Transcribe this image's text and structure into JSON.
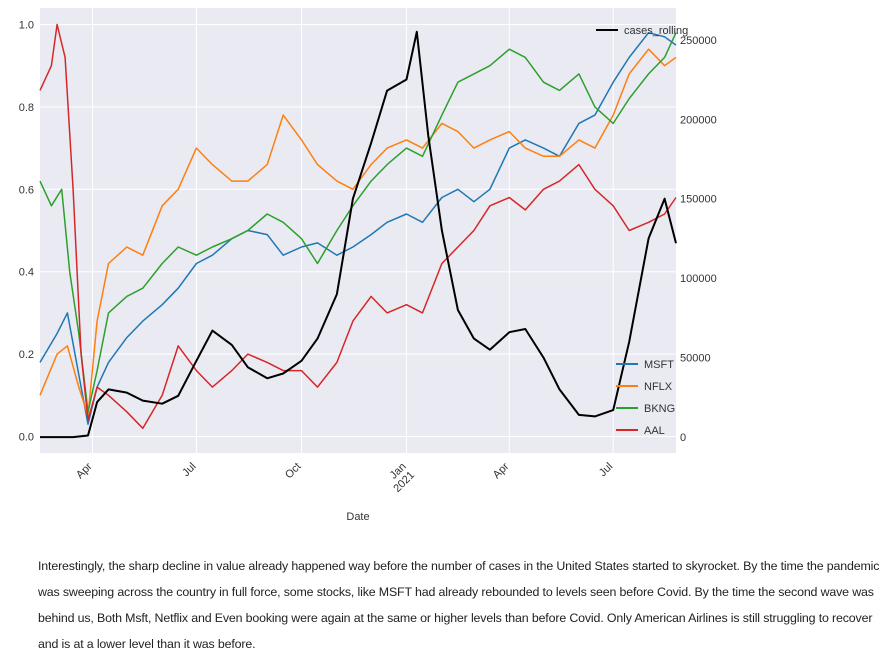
{
  "chart_data": {
    "type": "line",
    "xlabel": "Date",
    "x_range": [
      "2020-02-15",
      "2021-08-25"
    ],
    "xticks": [
      {
        "date": "2020-04-01",
        "label": "Apr"
      },
      {
        "date": "2020-07-01",
        "label": "Jul"
      },
      {
        "date": "2020-10-01",
        "label": "Oct"
      },
      {
        "date": "2021-01-01",
        "label": "Jan\n2021"
      },
      {
        "date": "2021-04-01",
        "label": "Apr"
      },
      {
        "date": "2021-07-01",
        "label": "Jul"
      }
    ],
    "ylim_left": [
      -0.04,
      1.04
    ],
    "yticks_left": [
      0.0,
      0.2,
      0.4,
      0.6,
      0.8,
      1.0
    ],
    "ylim_right": [
      -10000,
      270000
    ],
    "yticks_right": [
      0,
      50000,
      100000,
      150000,
      200000,
      250000
    ],
    "grid": true,
    "legends": [
      {
        "location": "top-right",
        "entries": [
          "cases_rolling"
        ]
      },
      {
        "location": "lower-right",
        "entries": [
          "MSFT",
          "NFLX",
          "BKNG",
          "AAL"
        ]
      }
    ],
    "series": [
      {
        "name": "MSFT",
        "axis": "left",
        "color": "#1f77b4",
        "points": [
          [
            "2020-02-15",
            0.18
          ],
          [
            "2020-03-01",
            0.25
          ],
          [
            "2020-03-10",
            0.3
          ],
          [
            "2020-03-20",
            0.15
          ],
          [
            "2020-03-28",
            0.03
          ],
          [
            "2020-04-05",
            0.12
          ],
          [
            "2020-04-15",
            0.18
          ],
          [
            "2020-05-01",
            0.24
          ],
          [
            "2020-05-15",
            0.28
          ],
          [
            "2020-06-01",
            0.32
          ],
          [
            "2020-06-15",
            0.36
          ],
          [
            "2020-07-01",
            0.42
          ],
          [
            "2020-07-15",
            0.44
          ],
          [
            "2020-08-01",
            0.48
          ],
          [
            "2020-08-15",
            0.5
          ],
          [
            "2020-09-01",
            0.49
          ],
          [
            "2020-09-15",
            0.44
          ],
          [
            "2020-10-01",
            0.46
          ],
          [
            "2020-10-15",
            0.47
          ],
          [
            "2020-11-01",
            0.44
          ],
          [
            "2020-11-15",
            0.46
          ],
          [
            "2020-12-01",
            0.49
          ],
          [
            "2020-12-15",
            0.52
          ],
          [
            "2021-01-01",
            0.54
          ],
          [
            "2021-01-15",
            0.52
          ],
          [
            "2021-02-01",
            0.58
          ],
          [
            "2021-02-15",
            0.6
          ],
          [
            "2021-03-01",
            0.57
          ],
          [
            "2021-03-15",
            0.6
          ],
          [
            "2021-04-01",
            0.7
          ],
          [
            "2021-04-15",
            0.72
          ],
          [
            "2021-05-01",
            0.7
          ],
          [
            "2021-05-15",
            0.68
          ],
          [
            "2021-06-01",
            0.76
          ],
          [
            "2021-06-15",
            0.78
          ],
          [
            "2021-07-01",
            0.86
          ],
          [
            "2021-07-15",
            0.92
          ],
          [
            "2021-08-01",
            0.98
          ],
          [
            "2021-08-15",
            0.97
          ],
          [
            "2021-08-25",
            0.95
          ]
        ]
      },
      {
        "name": "NFLX",
        "axis": "left",
        "color": "#ff7f0e",
        "points": [
          [
            "2020-02-15",
            0.1
          ],
          [
            "2020-03-01",
            0.2
          ],
          [
            "2020-03-10",
            0.22
          ],
          [
            "2020-03-20",
            0.12
          ],
          [
            "2020-03-28",
            0.05
          ],
          [
            "2020-04-05",
            0.28
          ],
          [
            "2020-04-15",
            0.42
          ],
          [
            "2020-05-01",
            0.46
          ],
          [
            "2020-05-15",
            0.44
          ],
          [
            "2020-06-01",
            0.56
          ],
          [
            "2020-06-15",
            0.6
          ],
          [
            "2020-07-01",
            0.7
          ],
          [
            "2020-07-15",
            0.66
          ],
          [
            "2020-08-01",
            0.62
          ],
          [
            "2020-08-15",
            0.62
          ],
          [
            "2020-09-01",
            0.66
          ],
          [
            "2020-09-15",
            0.78
          ],
          [
            "2020-10-01",
            0.72
          ],
          [
            "2020-10-15",
            0.66
          ],
          [
            "2020-11-01",
            0.62
          ],
          [
            "2020-11-15",
            0.6
          ],
          [
            "2020-12-01",
            0.66
          ],
          [
            "2020-12-15",
            0.7
          ],
          [
            "2021-01-01",
            0.72
          ],
          [
            "2021-01-15",
            0.7
          ],
          [
            "2021-02-01",
            0.76
          ],
          [
            "2021-02-15",
            0.74
          ],
          [
            "2021-03-01",
            0.7
          ],
          [
            "2021-03-15",
            0.72
          ],
          [
            "2021-04-01",
            0.74
          ],
          [
            "2021-04-15",
            0.7
          ],
          [
            "2021-05-01",
            0.68
          ],
          [
            "2021-05-15",
            0.68
          ],
          [
            "2021-06-01",
            0.72
          ],
          [
            "2021-06-15",
            0.7
          ],
          [
            "2021-07-01",
            0.78
          ],
          [
            "2021-07-15",
            0.88
          ],
          [
            "2021-08-01",
            0.94
          ],
          [
            "2021-08-15",
            0.9
          ],
          [
            "2021-08-25",
            0.92
          ]
        ]
      },
      {
        "name": "BKNG",
        "axis": "left",
        "color": "#2ca02c",
        "points": [
          [
            "2020-02-15",
            0.62
          ],
          [
            "2020-02-25",
            0.56
          ],
          [
            "2020-03-05",
            0.6
          ],
          [
            "2020-03-12",
            0.4
          ],
          [
            "2020-03-20",
            0.25
          ],
          [
            "2020-03-28",
            0.06
          ],
          [
            "2020-04-05",
            0.16
          ],
          [
            "2020-04-15",
            0.3
          ],
          [
            "2020-05-01",
            0.34
          ],
          [
            "2020-05-15",
            0.36
          ],
          [
            "2020-06-01",
            0.42
          ],
          [
            "2020-06-15",
            0.46
          ],
          [
            "2020-07-01",
            0.44
          ],
          [
            "2020-07-15",
            0.46
          ],
          [
            "2020-08-01",
            0.48
          ],
          [
            "2020-08-15",
            0.5
          ],
          [
            "2020-09-01",
            0.54
          ],
          [
            "2020-09-15",
            0.52
          ],
          [
            "2020-10-01",
            0.48
          ],
          [
            "2020-10-15",
            0.42
          ],
          [
            "2020-11-01",
            0.5
          ],
          [
            "2020-11-15",
            0.56
          ],
          [
            "2020-12-01",
            0.62
          ],
          [
            "2020-12-15",
            0.66
          ],
          [
            "2021-01-01",
            0.7
          ],
          [
            "2021-01-15",
            0.68
          ],
          [
            "2021-02-01",
            0.78
          ],
          [
            "2021-02-15",
            0.86
          ],
          [
            "2021-03-01",
            0.88
          ],
          [
            "2021-03-15",
            0.9
          ],
          [
            "2021-04-01",
            0.94
          ],
          [
            "2021-04-15",
            0.92
          ],
          [
            "2021-05-01",
            0.86
          ],
          [
            "2021-05-15",
            0.84
          ],
          [
            "2021-06-01",
            0.88
          ],
          [
            "2021-06-15",
            0.8
          ],
          [
            "2021-07-01",
            0.76
          ],
          [
            "2021-07-15",
            0.82
          ],
          [
            "2021-08-01",
            0.88
          ],
          [
            "2021-08-15",
            0.92
          ],
          [
            "2021-08-25",
            0.98
          ]
        ]
      },
      {
        "name": "AAL",
        "axis": "left",
        "color": "#d62728",
        "points": [
          [
            "2020-02-15",
            0.84
          ],
          [
            "2020-02-25",
            0.9
          ],
          [
            "2020-03-01",
            1.0
          ],
          [
            "2020-03-08",
            0.92
          ],
          [
            "2020-03-15",
            0.6
          ],
          [
            "2020-03-22",
            0.2
          ],
          [
            "2020-03-28",
            0.04
          ],
          [
            "2020-04-05",
            0.12
          ],
          [
            "2020-04-15",
            0.1
          ],
          [
            "2020-05-01",
            0.06
          ],
          [
            "2020-05-15",
            0.02
          ],
          [
            "2020-06-01",
            0.1
          ],
          [
            "2020-06-15",
            0.22
          ],
          [
            "2020-07-01",
            0.16
          ],
          [
            "2020-07-15",
            0.12
          ],
          [
            "2020-08-01",
            0.16
          ],
          [
            "2020-08-15",
            0.2
          ],
          [
            "2020-09-01",
            0.18
          ],
          [
            "2020-09-15",
            0.16
          ],
          [
            "2020-10-01",
            0.16
          ],
          [
            "2020-10-15",
            0.12
          ],
          [
            "2020-11-01",
            0.18
          ],
          [
            "2020-11-15",
            0.28
          ],
          [
            "2020-12-01",
            0.34
          ],
          [
            "2020-12-15",
            0.3
          ],
          [
            "2021-01-01",
            0.32
          ],
          [
            "2021-01-15",
            0.3
          ],
          [
            "2021-02-01",
            0.42
          ],
          [
            "2021-02-15",
            0.46
          ],
          [
            "2021-03-01",
            0.5
          ],
          [
            "2021-03-15",
            0.56
          ],
          [
            "2021-04-01",
            0.58
          ],
          [
            "2021-04-15",
            0.55
          ],
          [
            "2021-05-01",
            0.6
          ],
          [
            "2021-05-15",
            0.62
          ],
          [
            "2021-06-01",
            0.66
          ],
          [
            "2021-06-15",
            0.6
          ],
          [
            "2021-07-01",
            0.56
          ],
          [
            "2021-07-15",
            0.5
          ],
          [
            "2021-08-01",
            0.52
          ],
          [
            "2021-08-15",
            0.54
          ],
          [
            "2021-08-25",
            0.58
          ]
        ]
      },
      {
        "name": "cases_rolling",
        "axis": "right",
        "color": "#000000",
        "points": [
          [
            "2020-02-15",
            0
          ],
          [
            "2020-03-15",
            0
          ],
          [
            "2020-03-28",
            1000
          ],
          [
            "2020-04-05",
            22000
          ],
          [
            "2020-04-15",
            30000
          ],
          [
            "2020-05-01",
            28000
          ],
          [
            "2020-05-15",
            23000
          ],
          [
            "2020-06-01",
            21000
          ],
          [
            "2020-06-15",
            26000
          ],
          [
            "2020-07-01",
            48000
          ],
          [
            "2020-07-15",
            67000
          ],
          [
            "2020-08-01",
            58000
          ],
          [
            "2020-08-15",
            44000
          ],
          [
            "2020-09-01",
            37000
          ],
          [
            "2020-09-15",
            40000
          ],
          [
            "2020-10-01",
            48000
          ],
          [
            "2020-10-15",
            62000
          ],
          [
            "2020-11-01",
            90000
          ],
          [
            "2020-11-15",
            150000
          ],
          [
            "2020-12-01",
            185000
          ],
          [
            "2020-12-15",
            218000
          ],
          [
            "2021-01-01",
            225000
          ],
          [
            "2021-01-10",
            255000
          ],
          [
            "2021-01-20",
            190000
          ],
          [
            "2021-02-01",
            130000
          ],
          [
            "2021-02-15",
            80000
          ],
          [
            "2021-03-01",
            62000
          ],
          [
            "2021-03-15",
            55000
          ],
          [
            "2021-04-01",
            66000
          ],
          [
            "2021-04-15",
            68000
          ],
          [
            "2021-05-01",
            50000
          ],
          [
            "2021-05-15",
            30000
          ],
          [
            "2021-06-01",
            14000
          ],
          [
            "2021-06-15",
            13000
          ],
          [
            "2021-07-01",
            17000
          ],
          [
            "2021-07-15",
            60000
          ],
          [
            "2021-08-01",
            125000
          ],
          [
            "2021-08-15",
            150000
          ],
          [
            "2021-08-25",
            122000
          ]
        ]
      }
    ]
  },
  "caption": "Interestingly, the sharp decline in value already happened way before the number of cases in the United States started to skyrocket. By the time the pandemic was sweeping across the country in full force, some stocks, like MSFT had already rebounded to levels seen before Covid. By the time the second wave was behind us, Both Msft, Netflix and Even booking were again at the same or higher levels than before Covid. Only American Airlines is still struggling to recover and is at a lower level than it was before."
}
